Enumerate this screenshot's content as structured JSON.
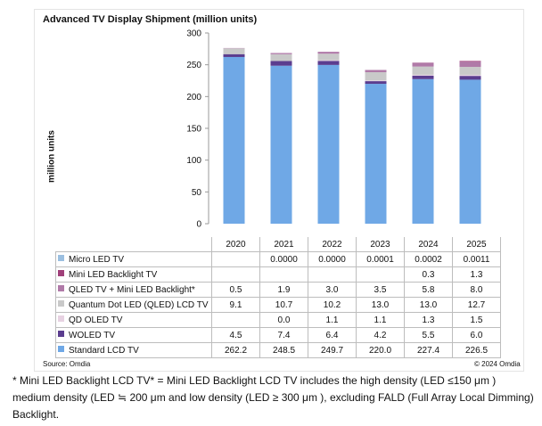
{
  "chart_data": {
    "type": "bar",
    "stacked": true,
    "title": "Advanced TV Display Shipment (million units)",
    "ylabel": "million units",
    "ylim": [
      0,
      300
    ],
    "yticks": [
      "0",
      "50",
      "100",
      "150",
      "200",
      "250",
      "300"
    ],
    "categories": [
      "2020",
      "2021",
      "2022",
      "2023",
      "2024",
      "2025"
    ],
    "series": [
      {
        "name": "Micro LED TV",
        "color": "#9bbfe0",
        "display": [
          "",
          "0.0000",
          "0.0000",
          "0.0001",
          "0.0002",
          "0.0011"
        ],
        "values": [
          0,
          0,
          0,
          0.0001,
          0.0002,
          0.0011
        ]
      },
      {
        "name": "Mini LED Backlight TV",
        "color": "#a0407a",
        "display": [
          "",
          "",
          "",
          "",
          "0.3",
          "1.3"
        ],
        "values": [
          0,
          0,
          0,
          0,
          0.3,
          1.3
        ]
      },
      {
        "name": "QLED TV + Mini LED Backlight*",
        "color": "#b07aa8",
        "display": [
          "0.5",
          "1.9",
          "3.0",
          "3.5",
          "5.8",
          "8.0"
        ],
        "values": [
          0.5,
          1.9,
          3.0,
          3.5,
          5.8,
          8.0
        ]
      },
      {
        "name": "Quantum Dot LED (QLED) LCD TV",
        "color": "#c9c9c9",
        "display": [
          "9.1",
          "10.7",
          "10.2",
          "13.0",
          "13.0",
          "12.7"
        ],
        "values": [
          9.1,
          10.7,
          10.2,
          13.0,
          13.0,
          12.7
        ]
      },
      {
        "name": "QD OLED TV",
        "color": "#e7d2e2",
        "display": [
          "",
          "0.0",
          "1.1",
          "1.1",
          "1.3",
          "1.5"
        ],
        "values": [
          0,
          0.0,
          1.1,
          1.1,
          1.3,
          1.5
        ]
      },
      {
        "name": "WOLED TV",
        "color": "#5b3d8f",
        "display": [
          "4.5",
          "7.4",
          "6.4",
          "4.2",
          "5.5",
          "6.0"
        ],
        "values": [
          4.5,
          7.4,
          6.4,
          4.2,
          5.5,
          6.0
        ]
      },
      {
        "name": "Standard LCD TV",
        "color": "#6fa8e6",
        "display": [
          "262.2",
          "248.5",
          "249.7",
          "220.0",
          "227.4",
          "226.5"
        ],
        "values": [
          262.2,
          248.5,
          249.7,
          220.0,
          227.4,
          226.5
        ]
      }
    ],
    "grid": false,
    "legend": "table-below"
  },
  "source": "Source: Omdia",
  "copyright": "© 2024 Omdia",
  "footnote": "* Mini LED Backlight LCD TV* = Mini LED Backlight LCD TV includes the high density (LED ≤150 μm ) medium density (LED ≒ 200 μm and low density (LED ≥ 300 μm ), excluding FALD (Full Array Local Dimming) Backlight."
}
